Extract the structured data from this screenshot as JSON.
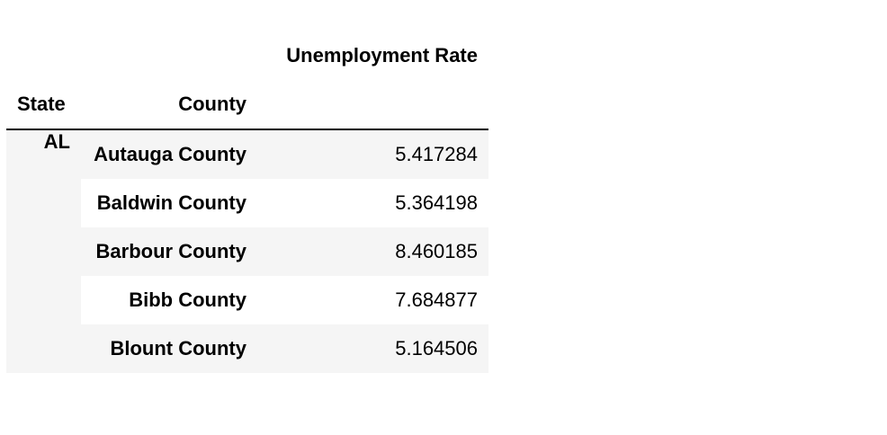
{
  "table": {
    "column_header": "Unemployment Rate",
    "index_names": [
      "State",
      "County"
    ],
    "state": "AL",
    "rows": [
      {
        "county": "Autauga County",
        "rate": "5.417284"
      },
      {
        "county": "Baldwin County",
        "rate": "5.364198"
      },
      {
        "county": "Barbour County",
        "rate": "8.460185"
      },
      {
        "county": "Bibb County",
        "rate": "7.684877"
      },
      {
        "county": "Blount County",
        "rate": "5.164506"
      }
    ]
  },
  "colors": {
    "stripe": "#f5f5f5",
    "border": "#000000"
  }
}
